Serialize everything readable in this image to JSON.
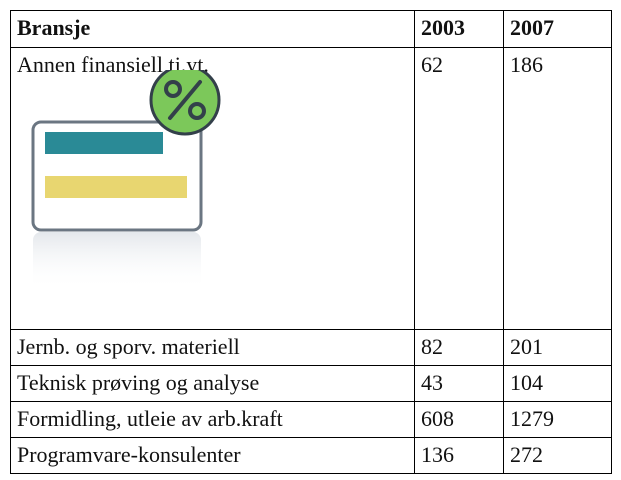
{
  "table": {
    "header": [
      "Bransje",
      "2003",
      "2007"
    ],
    "rows": [
      [
        "Annen finansiell tj.yt.",
        62,
        186
      ],
      [
        "Jernb. og sporv. materiell",
        82,
        201
      ],
      [
        "Teknisk prøving og analyse",
        43,
        104
      ],
      [
        "Formidling, utleie av arb.kraft",
        608,
        1279
      ],
      [
        "Programvare-konsulenter",
        136,
        272
      ]
    ]
  }
}
